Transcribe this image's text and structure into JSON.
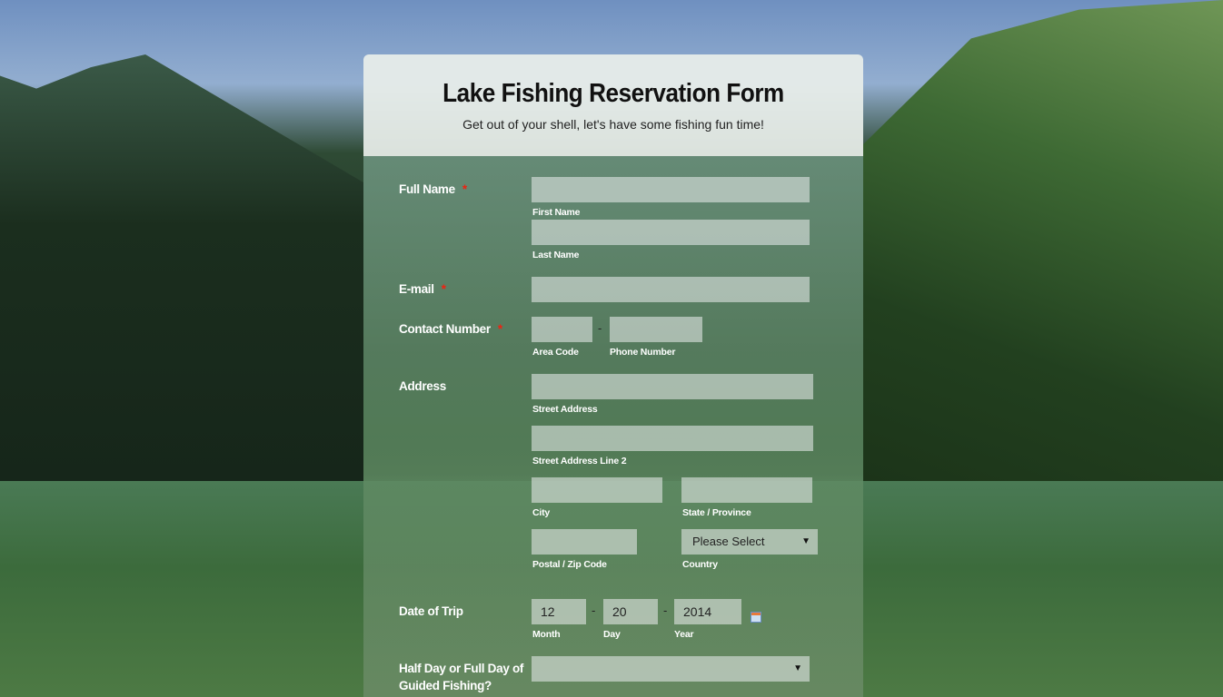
{
  "form": {
    "title": "Lake Fishing Reservation Form",
    "subtitle": "Get out of your shell, let's have some fishing fun time!",
    "required_mark": "*",
    "full_name": {
      "label": "Full Name",
      "first": "First Name",
      "last": "Last Name"
    },
    "email": {
      "label": "E-mail"
    },
    "contact": {
      "label": "Contact Number",
      "area": "Area Code",
      "phone": "Phone Number",
      "separator": "-"
    },
    "address": {
      "label": "Address",
      "street": "Street Address",
      "street2": "Street Address Line 2",
      "city": "City",
      "state": "State / Province",
      "postal": "Postal / Zip Code",
      "country": "Country",
      "country_value": "Please Select"
    },
    "date": {
      "label": "Date of Trip",
      "month": "12",
      "day": "20",
      "year": "2014",
      "month_label": "Month",
      "day_label": "Day",
      "year_label": "Year",
      "separator": "-"
    },
    "guided": {
      "label_line1": "Half Day or Full Day of",
      "label_line2": "Guided Fishing?",
      "value": ""
    }
  }
}
